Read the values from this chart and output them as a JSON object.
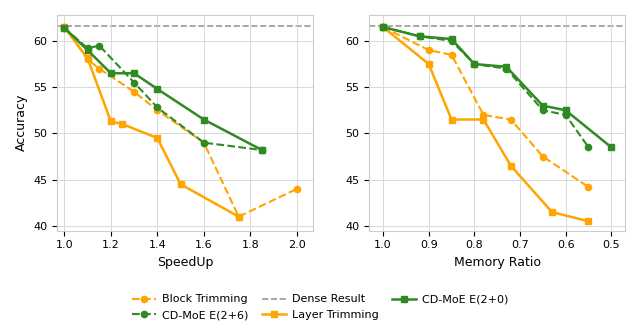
{
  "dense_result": 61.6,
  "left_plot": {
    "xlabel": "SpeedUp",
    "ylabel": "Accuracy",
    "xlim": [
      0.97,
      2.07
    ],
    "ylim": [
      39.5,
      62.8
    ],
    "xticks": [
      1.0,
      1.2,
      1.4,
      1.6,
      1.8,
      2.0
    ],
    "yticks": [
      40,
      45,
      50,
      55,
      60
    ],
    "block_trimming_x": [
      1.0,
      1.1,
      1.15,
      1.3,
      1.4,
      1.6,
      1.75,
      2.0
    ],
    "block_trimming_y": [
      61.5,
      58.0,
      57.0,
      54.5,
      52.5,
      49.0,
      41.0,
      44.0
    ],
    "layer_trimming_x": [
      1.0,
      1.1,
      1.2,
      1.25,
      1.4,
      1.5,
      1.75
    ],
    "layer_trimming_y": [
      61.5,
      58.1,
      51.3,
      51.0,
      49.5,
      44.5,
      41.0
    ],
    "cd_moe_e26_x": [
      1.0,
      1.1,
      1.15,
      1.3,
      1.4,
      1.6,
      1.85
    ],
    "cd_moe_e26_y": [
      61.4,
      59.2,
      59.5,
      55.5,
      52.8,
      49.0,
      48.2
    ],
    "cd_moe_e20_x": [
      1.0,
      1.1,
      1.2,
      1.3,
      1.4,
      1.6,
      1.85
    ],
    "cd_moe_e20_y": [
      61.4,
      59.0,
      56.5,
      56.5,
      54.8,
      51.5,
      48.2
    ]
  },
  "right_plot": {
    "xlabel": "Memory Ratio",
    "xlim": [
      1.03,
      0.47
    ],
    "ylim": [
      39.5,
      62.8
    ],
    "xticks": [
      1.0,
      0.9,
      0.8,
      0.7,
      0.6,
      0.5
    ],
    "yticks": [
      40,
      45,
      50,
      55,
      60
    ],
    "block_trimming_x": [
      1.0,
      0.9,
      0.85,
      0.78,
      0.72,
      0.65,
      0.55
    ],
    "block_trimming_y": [
      61.5,
      59.0,
      58.5,
      52.0,
      51.5,
      47.5,
      44.2
    ],
    "layer_trimming_x": [
      1.0,
      0.9,
      0.85,
      0.78,
      0.72,
      0.63,
      0.55
    ],
    "layer_trimming_y": [
      61.5,
      57.5,
      51.5,
      51.5,
      46.5,
      41.5,
      40.5
    ],
    "cd_moe_e26_x": [
      1.0,
      0.92,
      0.85,
      0.8,
      0.73,
      0.65,
      0.6,
      0.55
    ],
    "cd_moe_e26_y": [
      61.5,
      60.5,
      60.0,
      57.5,
      57.0,
      52.5,
      52.0,
      48.5
    ],
    "cd_moe_e20_x": [
      1.0,
      0.92,
      0.85,
      0.8,
      0.73,
      0.65,
      0.6,
      0.5
    ],
    "cd_moe_e20_y": [
      61.5,
      60.5,
      60.2,
      57.5,
      57.2,
      53.0,
      52.5,
      48.5
    ]
  },
  "orange_color": "#FFA500",
  "green_color": "#2E8B22",
  "gray_color": "#999999"
}
